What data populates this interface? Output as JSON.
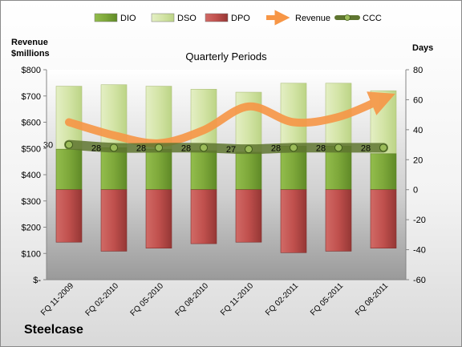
{
  "chart_data": {
    "type": "bar",
    "title": "Quarterly Periods",
    "company": "Steelcase",
    "left_axis_title": [
      "Revenue",
      "$millions"
    ],
    "right_axis_title": "Days",
    "left_ticks": [
      "$800",
      "$700",
      "$600",
      "$500",
      "$400",
      "$300",
      "$200",
      "$100",
      "$-"
    ],
    "right_ticks": [
      "80",
      "60",
      "40",
      "20",
      "0",
      "-20",
      "-40",
      "-60"
    ],
    "left_ylim": [
      0,
      800
    ],
    "right_ylim": [
      -60,
      80
    ],
    "grid": false,
    "legend_position": "top",
    "categories": [
      "FQ 11-2009",
      "FQ 02-2010",
      "FQ 05-2010",
      "FQ 08-2010",
      "FQ 11-2010",
      "FQ 02-2011",
      "FQ 05-2011",
      "FQ 08-2011"
    ],
    "series": [
      {
        "name": "DIO",
        "color": "#7ea83a",
        "values": [
          27,
          28,
          27,
          26,
          25,
          29,
          29,
          24
        ]
      },
      {
        "name": "DSO",
        "color": "#d3e4a6",
        "values": [
          42,
          42,
          42,
          41,
          40,
          42,
          42,
          42
        ]
      },
      {
        "name": "DPO",
        "color": "#c0504d",
        "values": [
          -35,
          -41,
          -39,
          -36,
          -35,
          -42,
          -41,
          -39
        ]
      },
      {
        "name": "Revenue",
        "color": "#f79646",
        "values": [
          600,
          550,
          520,
          570,
          660,
          600,
          620,
          690
        ]
      },
      {
        "name": "CCC",
        "color": "#5f7530",
        "values": [
          30,
          28,
          28,
          28,
          27,
          28,
          28,
          28
        ]
      }
    ]
  }
}
